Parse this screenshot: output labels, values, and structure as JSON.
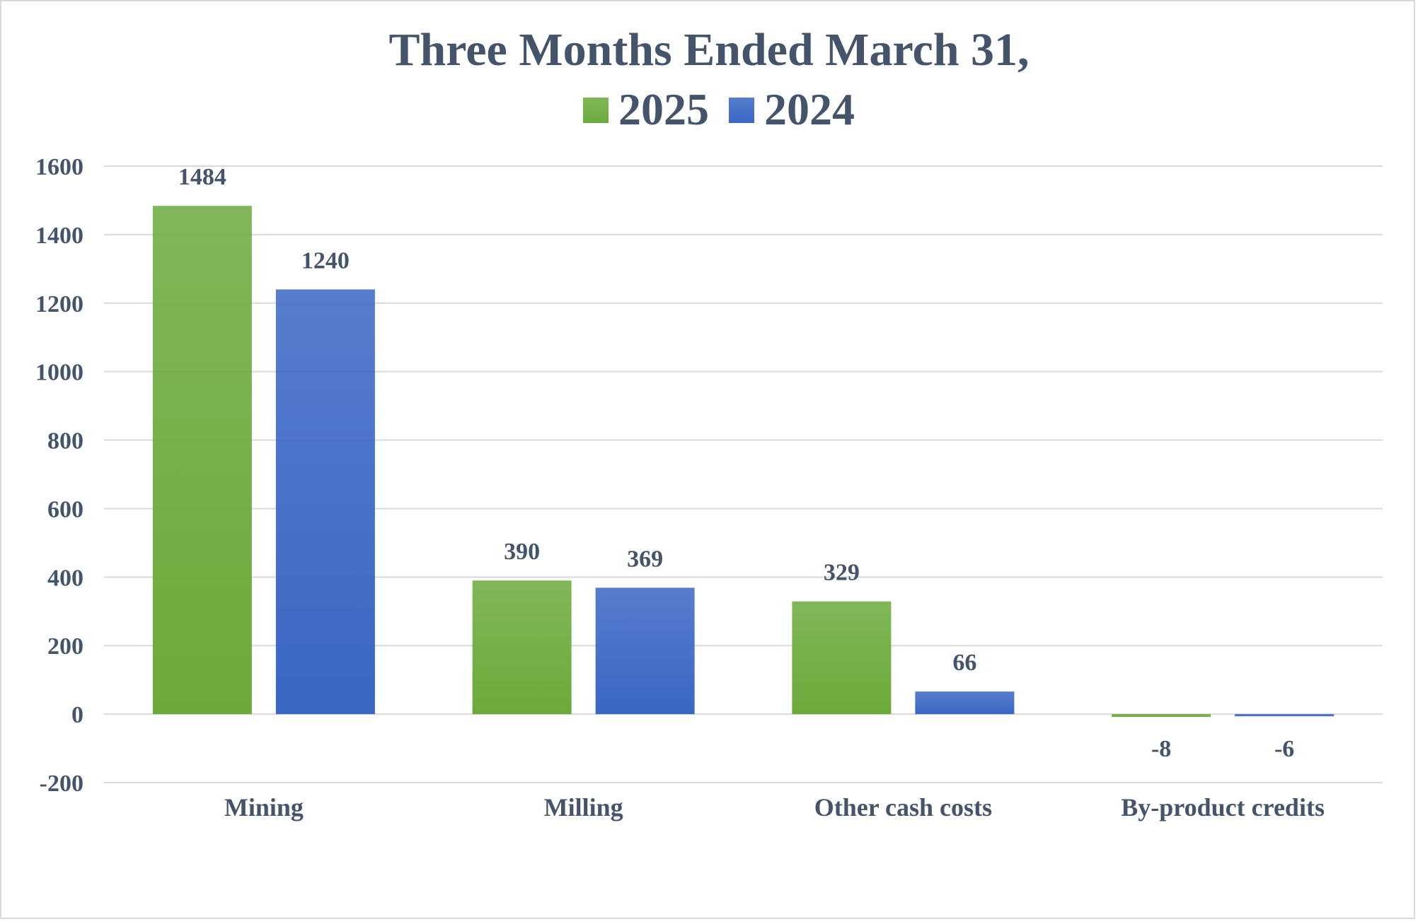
{
  "chart_data": {
    "type": "bar",
    "title": "Three Months Ended March 31,",
    "categories": [
      "Mining",
      "Milling",
      "Other cash costs",
      "By-product credits"
    ],
    "series": [
      {
        "name": "2025",
        "values": [
          1484,
          390,
          329,
          -8
        ],
        "color": "#6aaa3a"
      },
      {
        "name": "2024",
        "values": [
          1240,
          369,
          66,
          -6
        ],
        "color": "#3a66c4"
      }
    ],
    "ylim": [
      -200,
      1600
    ],
    "yticks": [
      -200,
      0,
      200,
      400,
      600,
      800,
      1000,
      1200,
      1400,
      1600
    ],
    "grid": true,
    "legend_position": "top",
    "text_color": "#44546a",
    "grid_color": "#d9d9d9"
  }
}
